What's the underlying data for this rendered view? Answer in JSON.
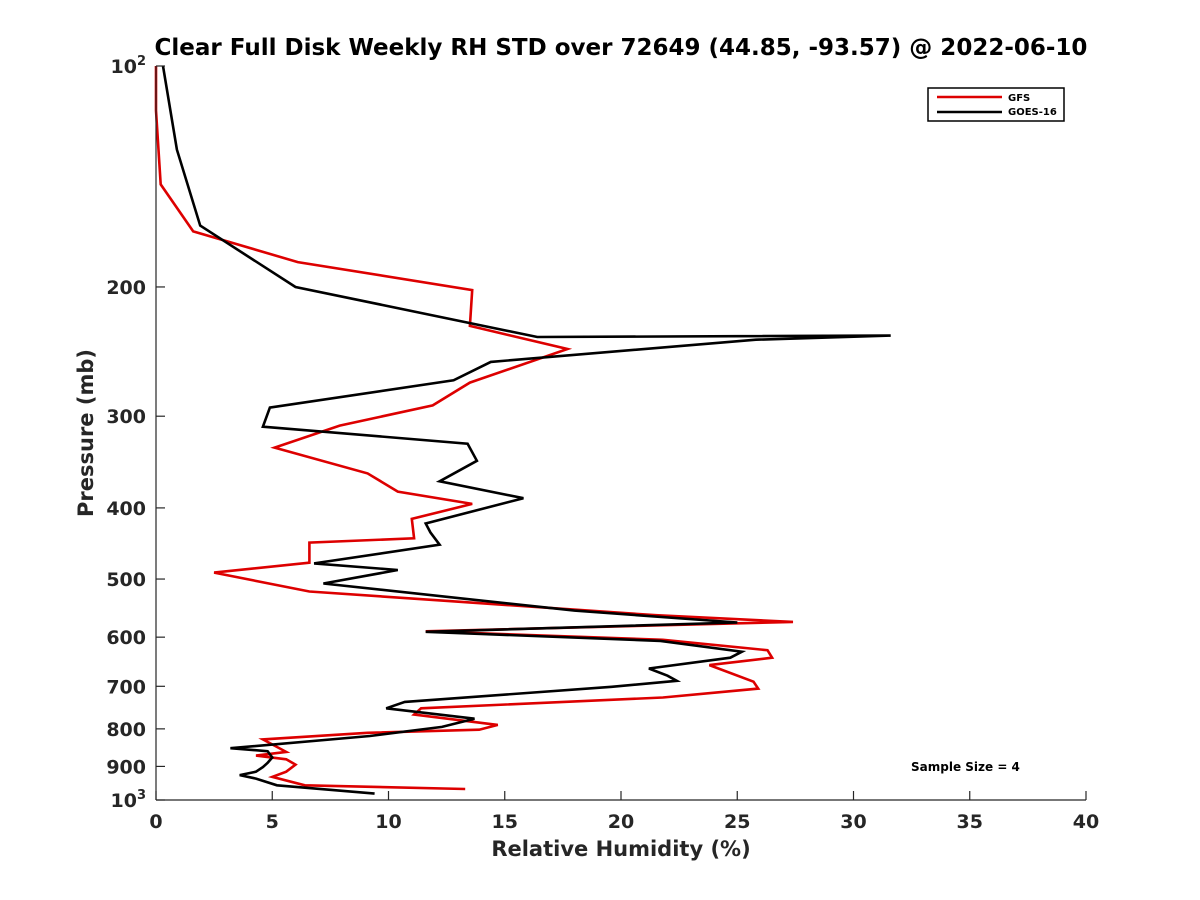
{
  "chart_data": {
    "type": "line",
    "title": "Clear Full Disk Weekly RH STD over 72649 (44.85, -93.57) @ 2022-06-10",
    "xlabel": "Relative Humidity (%)",
    "ylabel": "Pressure (mb)",
    "xlim": [
      0,
      40
    ],
    "ylim": [
      100,
      1000
    ],
    "y_scale": "log",
    "y_reversed": true,
    "x_ticks": [
      0,
      5,
      10,
      15,
      20,
      25,
      30,
      35,
      40
    ],
    "y_ticks": [
      {
        "value": 100,
        "base": "10",
        "exp": "2"
      },
      {
        "value": 200,
        "label": "200"
      },
      {
        "value": 300,
        "label": "300"
      },
      {
        "value": 400,
        "label": "400"
      },
      {
        "value": 500,
        "label": "500"
      },
      {
        "value": 600,
        "label": "600"
      },
      {
        "value": 700,
        "label": "700"
      },
      {
        "value": 800,
        "label": "800"
      },
      {
        "value": 900,
        "label": "900"
      },
      {
        "value": 1000,
        "base": "10",
        "exp": "3"
      }
    ],
    "grid": false,
    "legend_position": "top-right",
    "annotation": "Sample Size = 4",
    "series": [
      {
        "name": "GFS",
        "color": "#dd0000",
        "x": [
          0.0,
          0.0,
          0.2,
          1.6,
          6.1,
          13.6,
          13.5,
          17.7,
          13.5,
          11.9,
          7.9,
          5.1,
          9.1,
          10.4,
          13.6,
          11.0,
          11.1,
          6.6,
          6.6,
          2.5,
          6.6,
          12.3,
          21.5,
          27.4,
          11.6,
          21.8,
          26.3,
          26.5,
          23.8,
          25.7,
          25.9,
          21.8,
          11.4,
          11.1,
          14.7,
          13.9,
          9.1,
          4.6,
          5.6,
          4.3,
          5.6,
          6.0,
          5.6,
          5.0,
          6.4,
          13.3
        ],
        "y": [
          100,
          115,
          145,
          168,
          185,
          202,
          226,
          243,
          270,
          290,
          309,
          331,
          359,
          380,
          395,
          414,
          440,
          446,
          475,
          490,
          520,
          535,
          560,
          572,
          589,
          605,
          625,
          640,
          655,
          690,
          705,
          725,
          750,
          765,
          790,
          802,
          810,
          827,
          860,
          870,
          880,
          895,
          915,
          930,
          955,
          966
        ]
      },
      {
        "name": "GOES-16",
        "color": "#000000",
        "x": [
          0.3,
          0.9,
          1.9,
          6.0,
          16.4,
          31.6,
          25.8,
          14.4,
          12.8,
          4.9,
          4.6,
          13.4,
          13.8,
          12.2,
          15.8,
          11.6,
          11.8,
          12.2,
          6.8,
          10.4,
          7.2,
          18.0,
          25.0,
          11.6,
          21.7,
          25.2,
          24.7,
          21.2,
          22.0,
          22.4,
          19.6,
          10.7,
          9.9,
          13.7,
          12.3,
          9.2,
          3.2,
          4.8,
          5.0,
          4.8,
          4.6,
          4.3,
          3.6,
          4.3,
          5.2,
          9.4
        ],
        "y": [
          100,
          130,
          165,
          200,
          234,
          233,
          236,
          253,
          268,
          292,
          310,
          327,
          345,
          368,
          388,
          420,
          432,
          449,
          476,
          486,
          507,
          552,
          573,
          590,
          607,
          628,
          640,
          662,
          677,
          688,
          701,
          735,
          750,
          775,
          795,
          818,
          850,
          858,
          875,
          890,
          902,
          915,
          925,
          935,
          955,
          980
        ]
      }
    ]
  }
}
